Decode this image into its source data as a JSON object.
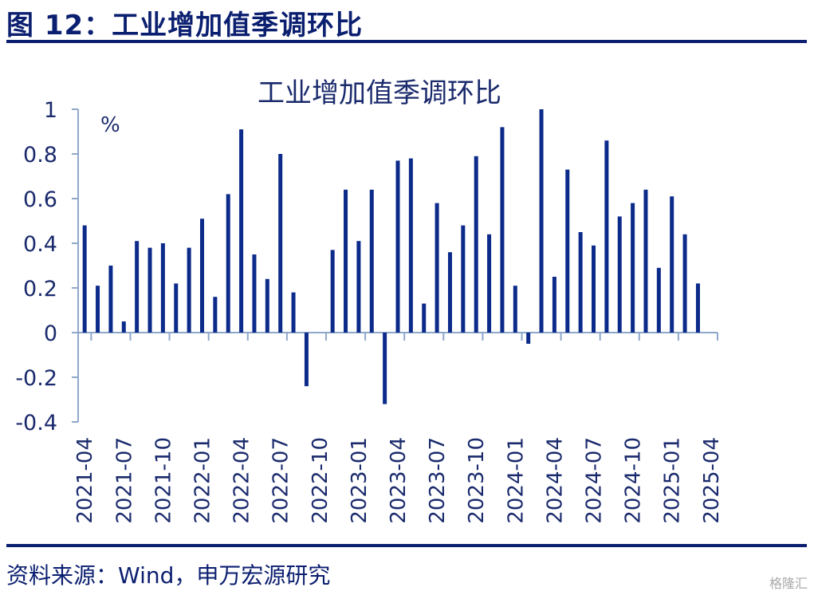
{
  "figure_title": "图 12：工业增加值季调环比",
  "source": "资料来源：Wind，申万宏源研究",
  "watermark": "格隆汇",
  "colors": {
    "bar": "#0b2a8a",
    "axis": "#8fa7c9",
    "rule": "#0b1f70"
  },
  "chart_data": {
    "type": "bar",
    "title": "工业增加值季调环比",
    "unit_label": "%",
    "ylim": [
      -0.4,
      1.0
    ],
    "yticks": [
      "1",
      "0.8",
      "0.6",
      "0.4",
      "0.2",
      "0",
      "-0.2",
      "-0.4"
    ],
    "ytick_values": [
      1,
      0.8,
      0.6,
      0.4,
      0.2,
      0,
      -0.2,
      -0.4
    ],
    "xtick_labels": [
      "2021-04",
      "2021-07",
      "2021-10",
      "2022-01",
      "2022-04",
      "2022-07",
      "2022-10",
      "2023-01",
      "2023-04",
      "2023-07",
      "2023-10",
      "2024-01",
      "2024-04",
      "2024-07",
      "2024-10",
      "2025-01",
      "2025-04"
    ],
    "categories": [
      "2021-04",
      "2021-05",
      "2021-06",
      "2021-07",
      "2021-08",
      "2021-09",
      "2021-10",
      "2021-11",
      "2021-12",
      "2022-01",
      "2022-02",
      "2022-03",
      "2022-04",
      "2022-05",
      "2022-06",
      "2022-07",
      "2022-08",
      "2022-09",
      "2022-10",
      "2022-11",
      "2022-12",
      "2023-01",
      "2023-02",
      "2023-03",
      "2023-04",
      "2023-05",
      "2023-06",
      "2023-07",
      "2023-08",
      "2023-09",
      "2023-10",
      "2023-11",
      "2023-12",
      "2024-01",
      "2024-02",
      "2024-03",
      "2024-04",
      "2024-05",
      "2024-06",
      "2024-07",
      "2024-08",
      "2024-09",
      "2024-10",
      "2024-11",
      "2024-12",
      "2025-01",
      "2025-02",
      "2025-03",
      "2025-04"
    ],
    "values": [
      0.48,
      0.21,
      0.3,
      0.05,
      0.41,
      0.38,
      0.4,
      0.22,
      0.38,
      0.51,
      0.16,
      0.62,
      0.91,
      0.35,
      0.24,
      0.8,
      0.18,
      -0.24,
      null,
      0.37,
      0.64,
      0.41,
      0.64,
      -0.32,
      0.77,
      0.78,
      0.13,
      0.58,
      0.36,
      0.48,
      0.79,
      0.44,
      0.92,
      0.21,
      -0.05,
      1.0,
      0.25,
      0.73,
      0.45,
      0.39,
      0.86,
      0.52,
      0.58,
      0.64,
      0.29,
      0.61,
      0.44,
      0.22,
      null
    ]
  }
}
